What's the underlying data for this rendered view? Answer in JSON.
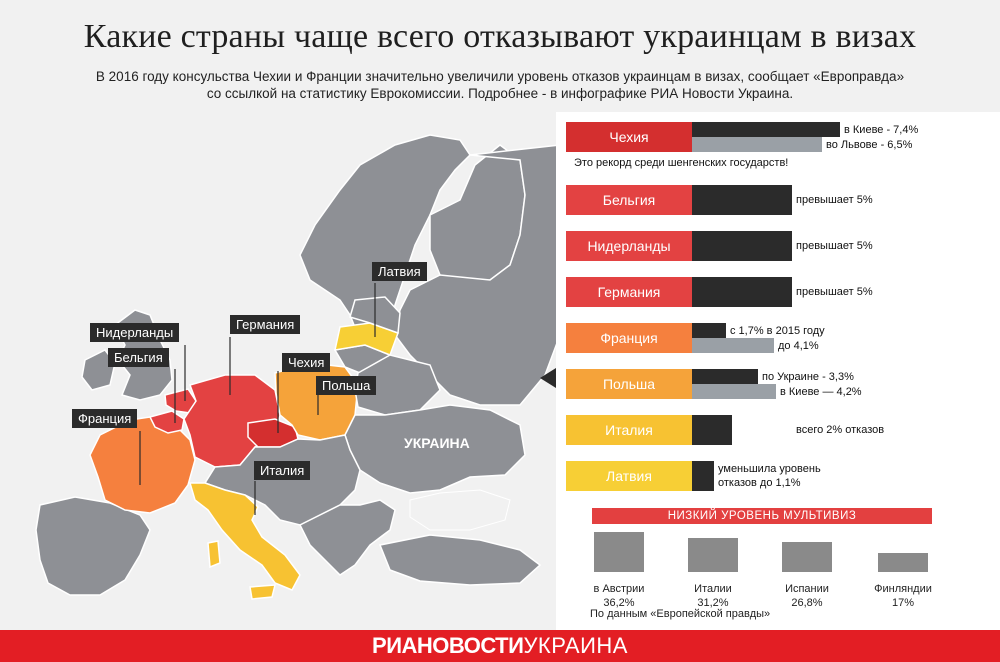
{
  "title": "Какие страны чаще всего отказывают украинцам в визах",
  "subtitle_line1": "В 2016 году консульства Чехии и Франции значительно увеличили уровень отказов украинцам в визах, сообщает «Европравда»",
  "subtitle_line2": "со ссылкой на статистику Еврокомиссии. Подробнее - в инфографике РИА Новости Украина.",
  "map": {
    "labels": {
      "netherlands": "Нидерланды",
      "belgium": "Бельгия",
      "france": "Франция",
      "germany": "Германия",
      "czech": "Чехия",
      "poland": "Польша",
      "italy": "Италия",
      "latvia": "Латвия",
      "ukraine": "УКРАИНА"
    }
  },
  "panel": {
    "record_note": "Это рекорд среди шенгенских государств!",
    "multivisa_title": "НИЗКИЙ УРОВЕНЬ МУЛЬТИВИЗ",
    "source": "По данным «Европейской правды»"
  },
  "colors": {
    "czech": "#d42f2f",
    "belgium": "#e34242",
    "netherlands": "#e34242",
    "germany": "#e34242",
    "france": "#f5803e",
    "poland": "#f5a33a",
    "italy": "#f7c232",
    "latvia": "#f7cf35",
    "dark_bar": "#2b2b2b",
    "grey_bar": "#9aa0a6",
    "footer": "#e31e24"
  },
  "chart_data": [
    {
      "type": "bar",
      "title": "",
      "unit": "%",
      "rows": [
        {
          "country": "Чехия",
          "bars": [
            {
              "value": 7.4,
              "label": "в Киеве - 7,4%",
              "shade": "dark"
            },
            {
              "value": 6.5,
              "label": "во Львове - 6,5%",
              "shade": "grey"
            }
          ]
        },
        {
          "country": "Бельгия",
          "bars": [
            {
              "value": 5.0,
              "label": "превышает 5%",
              "shade": "dark"
            }
          ]
        },
        {
          "country": "Нидерланды",
          "bars": [
            {
              "value": 5.0,
              "label": "превышает 5%",
              "shade": "dark"
            }
          ]
        },
        {
          "country": "Германия",
          "bars": [
            {
              "value": 5.0,
              "label": "превышает 5%",
              "shade": "dark"
            }
          ]
        },
        {
          "country": "Франция",
          "bars": [
            {
              "value": 1.7,
              "label": "с 1,7% в 2015 году",
              "shade": "dark"
            },
            {
              "value": 4.1,
              "label": "до 4,1%",
              "shade": "grey"
            }
          ]
        },
        {
          "country": "Польша",
          "bars": [
            {
              "value": 3.3,
              "label": "по Украине - 3,3%",
              "shade": "dark"
            },
            {
              "value": 4.2,
              "label": "в Киеве — 4,2%",
              "shade": "grey"
            }
          ]
        },
        {
          "country": "Италия",
          "bars": [
            {
              "value": 2.0,
              "label": "всего 2% отказов",
              "shade": "dark"
            }
          ]
        },
        {
          "country": "Латвия",
          "bars": [
            {
              "value": 1.1,
              "label_line1": "уменьшила уровень",
              "label_line2": "отказов до 1,1%",
              "shade": "dark"
            }
          ]
        }
      ]
    },
    {
      "type": "bar",
      "title": "НИЗКИЙ УРОВЕНЬ МУЛЬТИВИЗ",
      "unit": "%",
      "categories": [
        "в Австрии",
        "Италии",
        "Испании",
        "Финляндии"
      ],
      "values": [
        36.2,
        31.2,
        26.8,
        17
      ],
      "value_labels": [
        "36,2%",
        "31,2%",
        "26,8%",
        "17%"
      ]
    }
  ],
  "footer": {
    "logo_bold": "РИАНОВОСТИ",
    "logo_light": "УКРАИНА"
  }
}
